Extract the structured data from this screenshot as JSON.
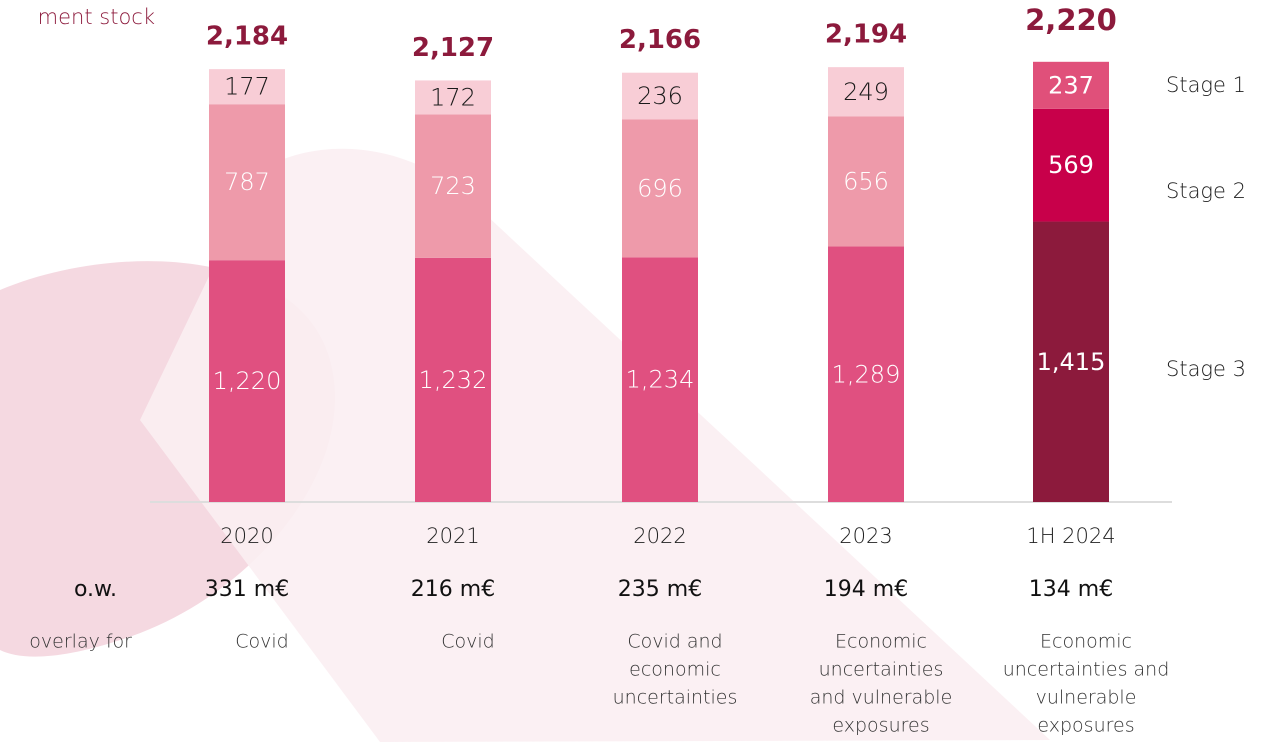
{
  "chart_data": {
    "type": "stacked_bar",
    "title": "ment stock",
    "categories": [
      "2020",
      "2021",
      "2022",
      "2023",
      "1H 2024"
    ],
    "series": [
      {
        "name": "Stage 3",
        "colors": [
          "#e05080",
          "#e05080",
          "#e05080",
          "#e05080",
          "#8c1a3c"
        ],
        "label_colors": [
          "#ffffff",
          "#ffffff",
          "#ffffff",
          "#ffffff",
          "#ffffff"
        ],
        "values": [
          1220,
          1232,
          1234,
          1289,
          1415
        ],
        "value_labels": [
          "1,220",
          "1,232",
          "1,234",
          "1,289",
          "1,415"
        ]
      },
      {
        "name": "Stage 2",
        "colors": [
          "#ee9aaa",
          "#ee9aaa",
          "#ee9aaa",
          "#ee9aaa",
          "#c8004a"
        ],
        "label_colors": [
          "#ffffff",
          "#ffffff",
          "#ffffff",
          "#ffffff",
          "#ffffff"
        ],
        "values": [
          787,
          723,
          696,
          656,
          569
        ]
      },
      {
        "name": "Stage 1",
        "colors": [
          "#f8cdd6",
          "#f8cdd6",
          "#f8cdd6",
          "#f8cdd6",
          "#e0507a"
        ],
        "label_colors": [
          "#1a1a1a",
          "#1a1a1a",
          "#1a1a1a",
          "#1a1a1a",
          "#ffffff"
        ],
        "values": [
          177,
          172,
          236,
          249,
          237
        ]
      }
    ],
    "totals": {
      "values": [
        2184,
        2127,
        2166,
        2194,
        2220
      ],
      "value_labels": [
        "2,184",
        "2,127",
        "2,166",
        "2,194",
        "2,220"
      ],
      "color": "#8c1a3c"
    },
    "ow_label": "o.w.",
    "overlay_amounts": [
      "331 m€",
      "216 m€",
      "235 m€",
      "194 m€",
      "134 m€"
    ],
    "overlay_label": "overlay for",
    "overlay_reasons": [
      [
        "Covid"
      ],
      [
        "Covid"
      ],
      [
        "Covid and",
        "economic",
        "uncertainties"
      ],
      [
        "Economic",
        "uncertainties",
        "and vulnerable",
        "exposures"
      ],
      [
        "Economic",
        "uncertainties and",
        "vulnerable",
        "exposures"
      ]
    ]
  }
}
